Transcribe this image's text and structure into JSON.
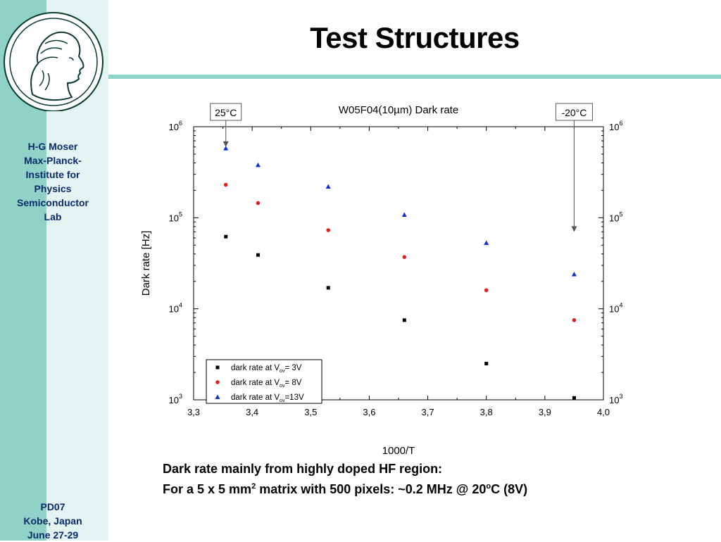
{
  "slide": {
    "title": "Test Structures"
  },
  "sidebar": {
    "top_lines": [
      "H-G Moser",
      "Max-Planck-",
      "Institute for",
      "Physics",
      "Semiconductor",
      "Lab"
    ],
    "bottom_lines": [
      "PD07",
      "Kobe, Japan",
      "June 27-29"
    ],
    "colors": {
      "dark": "#8fd3c8",
      "light": "#e3f4f2",
      "text": "#0a2a6b"
    }
  },
  "logo": {
    "icon": "minerva-head-icon"
  },
  "caption": {
    "line1": "Dark rate mainly from highly doped HF region:",
    "line2_a": "For a 5 x 5 mm",
    "line2_sup1": "2",
    "line2_b": " matrix with 500 pixels: ~0.2 MHz @ 20",
    "line2_sup2": "o",
    "line2_c": "C (8V)"
  },
  "chart_data": {
    "type": "scatter",
    "title": "W05F04(10µm) Dark rate",
    "xlabel": "1000/T",
    "ylabel": "Dark rate [Hz]",
    "xlim": [
      3.3,
      4.0
    ],
    "ylim": [
      1000,
      1000000
    ],
    "yscale": "log",
    "xticks": [
      "3,3",
      "3,4",
      "3,5",
      "3,6",
      "3,7",
      "3,8",
      "3,9",
      "4,0"
    ],
    "yticks": [
      {
        "base": "10",
        "exp": "3"
      },
      {
        "base": "10",
        "exp": "4"
      },
      {
        "base": "10",
        "exp": "5"
      },
      {
        "base": "10",
        "exp": "6"
      }
    ],
    "grid": false,
    "legend_position": "bottom-left",
    "series": [
      {
        "name": "dark rate at V",
        "sub": "ov",
        "suffix": "= 3V",
        "marker": "square",
        "color": "#000000",
        "x": [
          3.355,
          3.41,
          3.53,
          3.66,
          3.8,
          3.95
        ],
        "y": [
          62000,
          39000,
          17000,
          7500,
          2500,
          1050
        ]
      },
      {
        "name": "dark rate at V",
        "sub": "ov",
        "suffix": "= 8V",
        "marker": "circle",
        "color": "#e02020",
        "x": [
          3.355,
          3.41,
          3.53,
          3.66,
          3.8,
          3.95
        ],
        "y": [
          230000,
          145000,
          73000,
          37000,
          16000,
          7500
        ]
      },
      {
        "name": "dark rate at V",
        "sub": "ov",
        "suffix": "=13V",
        "marker": "triangle",
        "color": "#1030d0",
        "x": [
          3.355,
          3.41,
          3.53,
          3.66,
          3.8,
          3.95
        ],
        "y": [
          580000,
          380000,
          220000,
          108000,
          53000,
          24000
        ]
      }
    ],
    "annotations": [
      {
        "label": "25°C",
        "x": 3.355,
        "arrow_to_y": 600000
      },
      {
        "label": "-20°C",
        "x": 3.95,
        "arrow_to_y": 70000
      }
    ]
  }
}
